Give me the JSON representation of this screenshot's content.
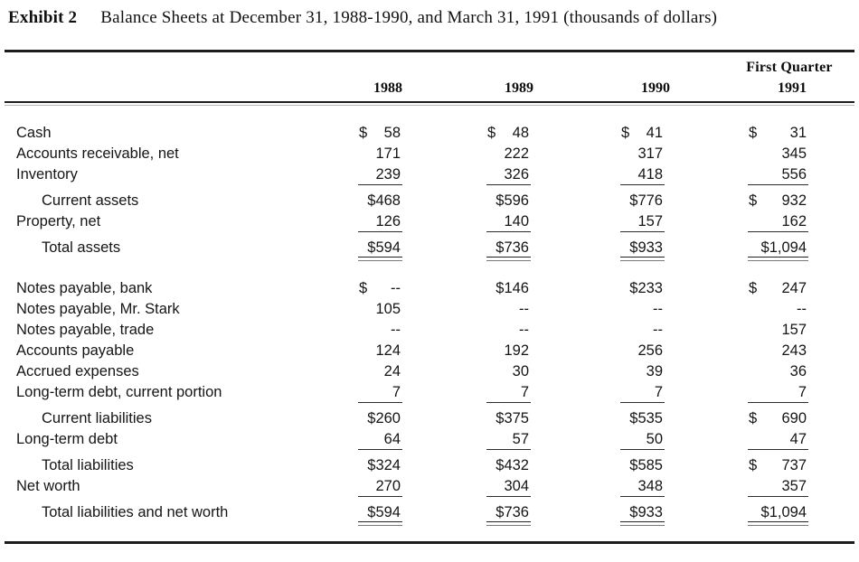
{
  "title": {
    "exhibit": "Exhibit 2",
    "caption": "Balance Sheets at December 31, 1988-1990, and March 31, 1991 (thousands of dollars)"
  },
  "colors": {
    "ink": "#151515",
    "rule": "#1c1c1c",
    "background": "#ffffff"
  },
  "table": {
    "header": {
      "first_quarter": "First Quarter",
      "years": [
        "1988",
        "1989",
        "1990",
        "1991"
      ]
    },
    "rows": [
      {
        "label": "Cash",
        "indent": false,
        "gap": "",
        "u": "",
        "values": [
          {
            "d": "$",
            "v": "58"
          },
          {
            "d": "$",
            "v": "48"
          },
          {
            "d": "$",
            "v": "41"
          },
          {
            "d": "$",
            "v": "31"
          }
        ]
      },
      {
        "label": "Accounts receivable, net",
        "indent": false,
        "gap": "",
        "u": "",
        "values": [
          {
            "d": "",
            "v": "171"
          },
          {
            "d": "",
            "v": "222"
          },
          {
            "d": "",
            "v": "317"
          },
          {
            "d": "",
            "v": "345"
          }
        ]
      },
      {
        "label": "Inventory",
        "indent": false,
        "gap": "",
        "u": "s",
        "values": [
          {
            "d": "",
            "v": "239"
          },
          {
            "d": "",
            "v": "326"
          },
          {
            "d": "",
            "v": "418"
          },
          {
            "d": "",
            "v": "556"
          }
        ]
      },
      {
        "label": "Current assets",
        "indent": true,
        "gap": "sub",
        "u": "",
        "values": [
          {
            "d": "",
            "v": "$468"
          },
          {
            "d": "",
            "v": "$596"
          },
          {
            "d": "",
            "v": "$776"
          },
          {
            "d": "$",
            "v": "932"
          }
        ]
      },
      {
        "label": "Property, net",
        "indent": false,
        "gap": "",
        "u": "s",
        "values": [
          {
            "d": "",
            "v": "126"
          },
          {
            "d": "",
            "v": "140"
          },
          {
            "d": "",
            "v": "157"
          },
          {
            "d": "",
            "v": "162"
          }
        ]
      },
      {
        "label": "Total assets",
        "indent": true,
        "gap": "sub",
        "u": "d",
        "values": [
          {
            "d": "",
            "v": "$594"
          },
          {
            "d": "",
            "v": "$736"
          },
          {
            "d": "",
            "v": "$933"
          },
          {
            "d": "",
            "v": "$1,094"
          }
        ]
      },
      {
        "label": "Notes payable, bank",
        "indent": false,
        "gap": "sec",
        "u": "",
        "values": [
          {
            "d": "$",
            "v": "--"
          },
          {
            "d": "",
            "v": "$146"
          },
          {
            "d": "",
            "v": "$233"
          },
          {
            "d": "$",
            "v": "247"
          }
        ]
      },
      {
        "label": "Notes payable, Mr. Stark",
        "indent": false,
        "gap": "",
        "u": "",
        "values": [
          {
            "d": "",
            "v": "105"
          },
          {
            "d": "",
            "v": "--"
          },
          {
            "d": "",
            "v": "--"
          },
          {
            "d": "",
            "v": "--"
          }
        ]
      },
      {
        "label": "Notes payable, trade",
        "indent": false,
        "gap": "",
        "u": "",
        "values": [
          {
            "d": "",
            "v": "--"
          },
          {
            "d": "",
            "v": "--"
          },
          {
            "d": "",
            "v": "--"
          },
          {
            "d": "",
            "v": "157"
          }
        ]
      },
      {
        "label": "Accounts payable",
        "indent": false,
        "gap": "",
        "u": "",
        "values": [
          {
            "d": "",
            "v": "124"
          },
          {
            "d": "",
            "v": "192"
          },
          {
            "d": "",
            "v": "256"
          },
          {
            "d": "",
            "v": "243"
          }
        ]
      },
      {
        "label": "Accrued expenses",
        "indent": false,
        "gap": "",
        "u": "",
        "values": [
          {
            "d": "",
            "v": "24"
          },
          {
            "d": "",
            "v": "30"
          },
          {
            "d": "",
            "v": "39"
          },
          {
            "d": "",
            "v": "36"
          }
        ]
      },
      {
        "label": "Long-term debt, current portion",
        "indent": false,
        "gap": "",
        "u": "s",
        "values": [
          {
            "d": "",
            "v": "7"
          },
          {
            "d": "",
            "v": "7"
          },
          {
            "d": "",
            "v": "7"
          },
          {
            "d": "",
            "v": "7"
          }
        ]
      },
      {
        "label": "Current liabilities",
        "indent": true,
        "gap": "sub",
        "u": "",
        "values": [
          {
            "d": "",
            "v": "$260"
          },
          {
            "d": "",
            "v": "$375"
          },
          {
            "d": "",
            "v": "$535"
          },
          {
            "d": "$",
            "v": "690"
          }
        ]
      },
      {
        "label": "Long-term debt",
        "indent": false,
        "gap": "",
        "u": "s",
        "values": [
          {
            "d": "",
            "v": "64"
          },
          {
            "d": "",
            "v": "57"
          },
          {
            "d": "",
            "v": "50"
          },
          {
            "d": "",
            "v": "47"
          }
        ]
      },
      {
        "label": "Total liabilities",
        "indent": true,
        "gap": "sub",
        "u": "",
        "values": [
          {
            "d": "",
            "v": "$324"
          },
          {
            "d": "",
            "v": "$432"
          },
          {
            "d": "",
            "v": "$585"
          },
          {
            "d": "$",
            "v": "737"
          }
        ]
      },
      {
        "label": "Net worth",
        "indent": false,
        "gap": "",
        "u": "s",
        "values": [
          {
            "d": "",
            "v": "270"
          },
          {
            "d": "",
            "v": "304"
          },
          {
            "d": "",
            "v": "348"
          },
          {
            "d": "",
            "v": "357"
          }
        ]
      },
      {
        "label": "Total liabilities and net worth",
        "indent": true,
        "gap": "sub",
        "u": "d",
        "values": [
          {
            "d": "",
            "v": "$594"
          },
          {
            "d": "",
            "v": "$736"
          },
          {
            "d": "",
            "v": "$933"
          },
          {
            "d": "",
            "v": "$1,094"
          }
        ]
      }
    ]
  }
}
